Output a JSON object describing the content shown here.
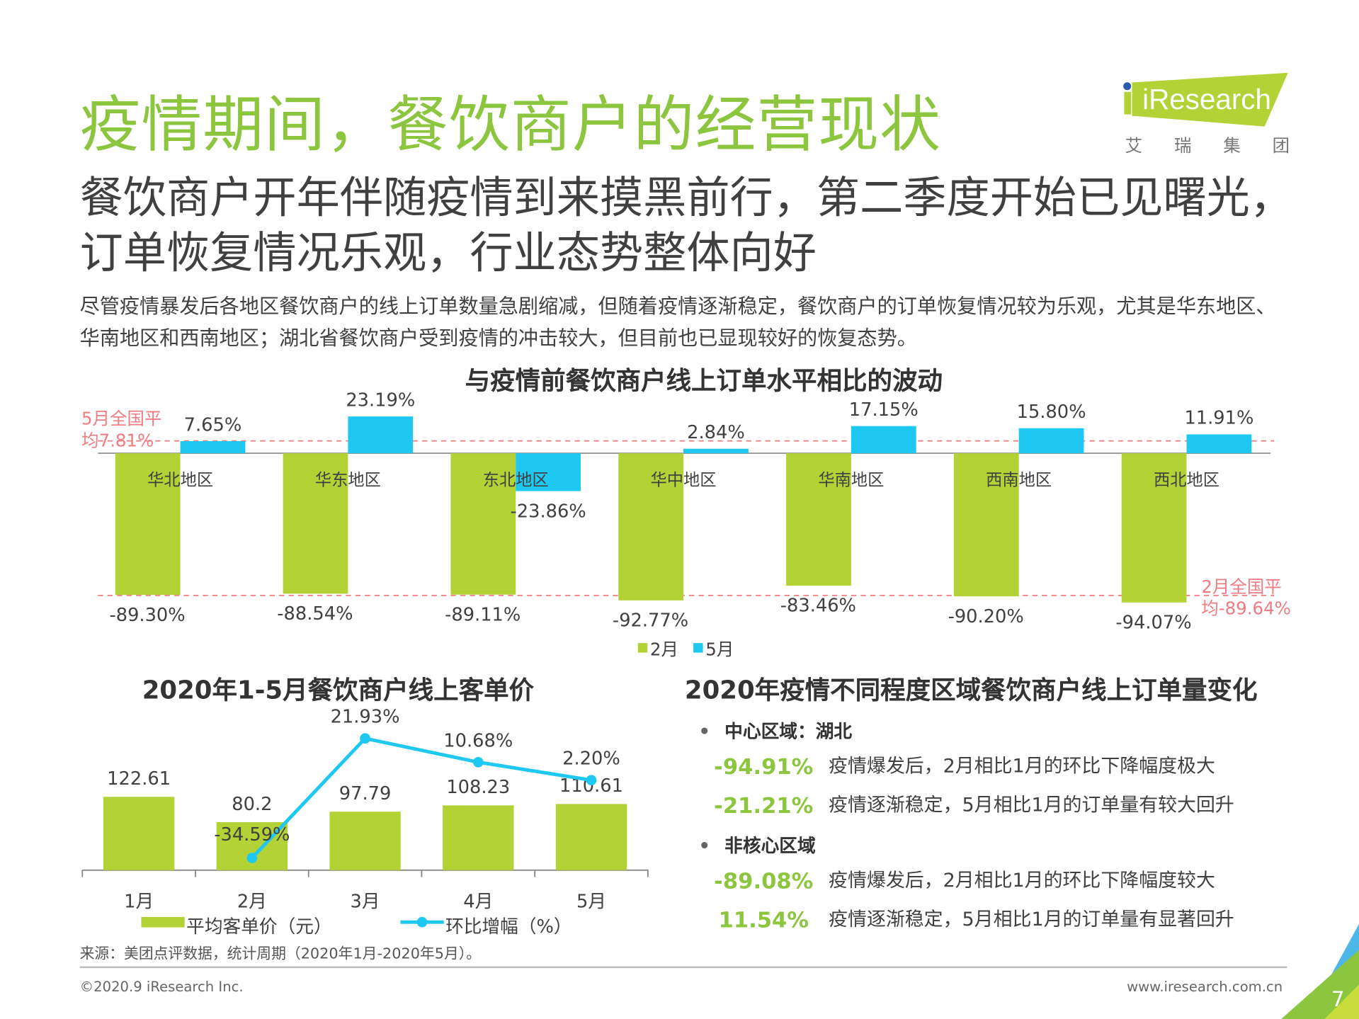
{
  "title": "疫情期间，餐饮商户的经营现状",
  "subtitle": "餐饮商户开年伴随疫情到来摸黑前行，第二季度开始已见曙光，订单恢复情况乐观，行业态势整体向好",
  "paragraph": "尽管疫情暴发后各地区餐饮商户的线上订单数量急剧缩减，但随着疫情逐渐稳定，餐饮商户的订单恢复情况较为乐观，尤其是华东地区、华南地区和西南地区；湖北省餐饮商户受到疫情的冲击较大，但目前也已显现较好的恢复态势。",
  "logo": {
    "text": "iResearch",
    "cn": [
      "艾",
      "瑞",
      "集",
      "团"
    ]
  },
  "colors": {
    "green": "#b2d235",
    "blue": "#1ec8f0",
    "title_green": "#8cc63f",
    "reference": "#f07c82"
  },
  "chart_data": [
    {
      "type": "bar",
      "title": "与疫情前餐饮商户线上订单水平相比的波动",
      "categories": [
        "华北地区",
        "华东地区",
        "东北地区",
        "华中地区",
        "华南地区",
        "西南地区",
        "西北地区"
      ],
      "series": [
        {
          "name": "2月",
          "values": [
            -89.3,
            -88.54,
            -89.11,
            -92.77,
            -83.46,
            -90.2,
            -94.07
          ],
          "labels": [
            "-89.30%",
            "-88.54%",
            "-89.11%",
            "-92.77%",
            "-83.46%",
            "-90.20%",
            "-94.07%"
          ]
        },
        {
          "name": "5月",
          "values": [
            7.65,
            23.19,
            -23.86,
            2.84,
            17.15,
            15.8,
            11.91
          ],
          "labels": [
            "7.65%",
            "23.19%",
            "-23.86%",
            "2.84%",
            "17.15%",
            "15.80%",
            "11.91%"
          ]
        }
      ],
      "reference_lines": [
        {
          "value": 7.81,
          "label_line1": "5月全国平",
          "label_line2": "均7.81%"
        },
        {
          "value": -89.64,
          "label_line1": "2月全国平",
          "label_line2": "均-89.64%"
        }
      ],
      "legend": "bottom",
      "grid": false
    },
    {
      "type": "bar+line",
      "title": "2020年1-5月餐饮商户线上客单价",
      "categories": [
        "1月",
        "2月",
        "3月",
        "4月",
        "5月"
      ],
      "series": [
        {
          "name": "平均客单价（元）",
          "type": "bar",
          "values": [
            122.61,
            80.2,
            97.79,
            108.23,
            110.61
          ],
          "labels": [
            "122.61",
            "80.2",
            "97.79",
            "108.23",
            "110.61"
          ]
        },
        {
          "name": "环比增幅（%）",
          "type": "line",
          "values": [
            null,
            -34.59,
            21.93,
            10.68,
            2.2
          ],
          "labels": [
            "",
            "-34.59%",
            "21.93%",
            "10.68%",
            "2.20%"
          ]
        }
      ],
      "legend": "bottom",
      "grid": false
    }
  ],
  "right_panel": {
    "title": "2020年疫情不同程度区域餐饮商户线上订单量变化",
    "groups": [
      {
        "heading": "中心区域：湖北",
        "rows": [
          {
            "value": "-94.91%",
            "text": "疫情爆发后，2月相比1月的环比下降幅度极大"
          },
          {
            "value": "-21.21%",
            "text": "疫情逐渐稳定，5月相比1月的订单量有较大回升"
          }
        ]
      },
      {
        "heading": "非核心区域",
        "rows": [
          {
            "value": "-89.08%",
            "text": "疫情爆发后，2月相比1月的环比下降幅度较大"
          },
          {
            "value": "11.54%",
            "text": "疫情逐渐稳定，5月相比1月的订单量有显著回升"
          }
        ]
      }
    ]
  },
  "source": "来源：美团点评数据，统计周期（2020年1月-2020年5月）。",
  "footer": {
    "copyright": "©2020.9 iResearch Inc.",
    "url": "www.iresearch.com.cn",
    "page": "7"
  }
}
